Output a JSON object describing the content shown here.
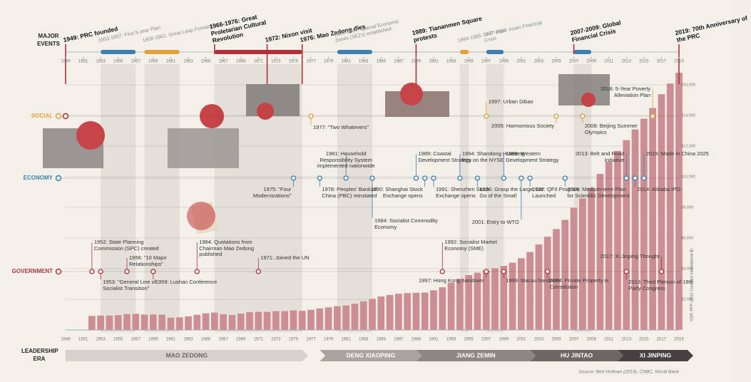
{
  "chart_data": {
    "type": "bar",
    "y_axis_label": "GDP, PPP (2011 Constant international $)",
    "x": [
      1952,
      1953,
      1954,
      1955,
      1956,
      1957,
      1958,
      1959,
      1960,
      1961,
      1962,
      1963,
      1964,
      1965,
      1966,
      1967,
      1968,
      1969,
      1970,
      1971,
      1972,
      1973,
      1974,
      1975,
      1976,
      1977,
      1978,
      1979,
      1980,
      1981,
      1982,
      1983,
      1984,
      1985,
      1986,
      1987,
      1988,
      1989,
      1990,
      1991,
      1992,
      1993,
      1994,
      1995,
      1996,
      1997,
      1998,
      1999,
      2000,
      2001,
      2002,
      2003,
      2004,
      2005,
      2006,
      2007,
      2008,
      2009,
      2010,
      2011,
      2012,
      2013,
      2014,
      2015,
      2016,
      2017,
      2018,
      2019
    ],
    "values": [
      930,
      960,
      960,
      990,
      1060,
      1070,
      1020,
      1030,
      1020,
      820,
      840,
      900,
      1000,
      1100,
      1150,
      1050,
      1000,
      1090,
      1180,
      1200,
      1200,
      1250,
      1250,
      1300,
      1260,
      1330,
      1420,
      1490,
      1570,
      1620,
      1730,
      1890,
      2050,
      2200,
      2300,
      2380,
      2420,
      2440,
      2450,
      2600,
      2800,
      3100,
      3350,
      3600,
      3750,
      3900,
      4050,
      4200,
      4400,
      4700,
      5100,
      5600,
      6100,
      6600,
      7200,
      8000,
      8600,
      9300,
      10200,
      11000,
      11700,
      12400,
      13100,
      13800,
      14500,
      15400,
      16100,
      16800
    ],
    "color": "#cc8e93",
    "xlim": [
      1949,
      2019
    ],
    "xticks": [
      1949,
      1951,
      1953,
      1955,
      1957,
      1959,
      1961,
      1963,
      1965,
      1967,
      1969,
      1971,
      1973,
      1975,
      1977,
      1979,
      1981,
      1983,
      1985,
      1987,
      1989,
      1991,
      1993,
      1995,
      1997,
      1999,
      2001,
      2003,
      2005,
      2007,
      2009,
      2011,
      2013,
      2015,
      2017,
      2019
    ],
    "ylim": [
      0,
      17000
    ],
    "yticks": [
      {
        "value": 2000,
        "label": "$2,000"
      },
      {
        "value": 4000,
        "label": "$4,000"
      },
      {
        "value": 6000,
        "label": "$6,000"
      },
      {
        "value": 8000,
        "label": "$8,000"
      },
      {
        "value": 10000,
        "label": "$10,000"
      },
      {
        "value": 12000,
        "label": "$12,000"
      },
      {
        "value": 14000,
        "label": "$14,000"
      },
      {
        "value": 16000,
        "label": "$16,000"
      }
    ],
    "grid": true
  },
  "timeline": {
    "heading": [
      "MAJOR",
      "EVENTS"
    ],
    "major_events": [
      {
        "label": "1949: PRC founded",
        "start": 1949,
        "key": true
      },
      {
        "label": "1953-1957: First 5-year Plan",
        "start": 1953,
        "end": 1957,
        "key": false,
        "color": "#3d7fae"
      },
      {
        "label": "1958-1962: Great Leap Forward",
        "start": 1958,
        "end": 1962,
        "key": false,
        "color": "#e0a03c"
      },
      {
        "label": "1966-1976: Great Proletarian Cultural Revolution",
        "start": 1966,
        "end": 1976,
        "key": true,
        "color": "#b0303a"
      },
      {
        "label": "1972: Nixon visit",
        "start": 1972,
        "key": true
      },
      {
        "label": "1976: Mao Zedong dies",
        "start": 1976,
        "key": true
      },
      {
        "label": "1980-1984: Special Economic Zones (SEZs) established",
        "start": 1980,
        "end": 1984,
        "key": false,
        "color": "#3d7fae"
      },
      {
        "label": "1989: Tiananmen Square protests",
        "start": 1989,
        "key": true
      },
      {
        "label": "1994-1995: \"8-7\" Plan",
        "start": 1994,
        "end": 1995,
        "key": false,
        "color": "#e0a03c"
      },
      {
        "label": "1997-1999: Asian Financial Crisis",
        "start": 1997,
        "end": 1999,
        "key": false,
        "color": "#3d7fae"
      },
      {
        "label": "2007-2009: Global Financial Crisis",
        "start": 2007,
        "end": 2009,
        "key": true,
        "color": "#3d7fae"
      },
      {
        "label": "2019: 70th Anniversary of the PRC",
        "start": 2019,
        "key": true
      }
    ],
    "rows": [
      {
        "name": "SOCIAL",
        "color": "#e0a03c",
        "events": [
          {
            "year": 1977,
            "label": "1977: \"Two Whatevers\""
          },
          {
            "year": 1997,
            "label": "1997: Urban Dibao"
          },
          {
            "year": 2005,
            "label": "2005: Harmonious Society"
          },
          {
            "year": 2008,
            "label": "2008: Beijing Summer Olympics"
          },
          {
            "year": 2016,
            "label": "2016: 5-Year Poverty Alleviation Plan"
          }
        ]
      },
      {
        "name": "ECONOMY",
        "color": "#3d7fae",
        "events": [
          {
            "year": 1975,
            "label": "1975: \"Four Modernizations\""
          },
          {
            "year": 1978,
            "label": "1978: Peoples' Bank of China (PBC) reinstated"
          },
          {
            "year": 1981,
            "label": "1981: Household Responsibility System implemented nationwide"
          },
          {
            "year": 1984,
            "label": "1984: Socialist Commodity Economy"
          },
          {
            "year": 1989,
            "label": "1989: Coastal Development Strategy"
          },
          {
            "year": 1990,
            "label": "1990: Shanghai Stock Exchange opens"
          },
          {
            "year": 1991,
            "label": "1991: Shenzhen Stock Exchange opens"
          },
          {
            "year": 1994,
            "label": "1994: Shandong Huaneng lists on the NYSE"
          },
          {
            "year": 1996,
            "label": "1996: Grasp the Large, Let Go of the Small"
          },
          {
            "year": 1999,
            "label": "1999: Western Development Strategy"
          },
          {
            "year": 2001,
            "label": "2001: Entry to WTO"
          },
          {
            "year": 2002,
            "label": "2002: QFII Program Launched"
          },
          {
            "year": 2006,
            "label": "2006: Medium-term Plan for Scientific Development"
          },
          {
            "year": 2013,
            "label": "2013: Belt and Road Initiative"
          },
          {
            "year": 2014,
            "label": "2014: Alibaba IPO"
          },
          {
            "year": 2015,
            "label": "2015: Made in China 2025"
          }
        ]
      },
      {
        "name": "GOVERNMENT",
        "color": "#a8383f",
        "events": [
          {
            "year": 1952,
            "label": "1952: State Planning Commission (SPC) created"
          },
          {
            "year": 1953,
            "label": "1953: \"General Line of Socialist Transition\""
          },
          {
            "year": 1956,
            "label": "1956: \"10 Major Relationships\""
          },
          {
            "year": 1959,
            "label": "1959: Lushan Conference"
          },
          {
            "year": 1964,
            "label": "1964: Quotations from Chairman Mao Zedong published"
          },
          {
            "year": 1971,
            "label": "1971: Joined the UN"
          },
          {
            "year": 1992,
            "label": "1992: Socialist Market Economy (SME)"
          },
          {
            "year": 1997,
            "label": "1997: Hong Kong handover"
          },
          {
            "year": 1999,
            "label": "1999: Macau handover"
          },
          {
            "year": 2004,
            "label": "2004: Private Property in Constitution"
          },
          {
            "year": 2013,
            "label": "2013: Third Plenum of 18th Party Congress"
          },
          {
            "year": 2017,
            "label": "2017: Xi Jinping Thought"
          }
        ]
      }
    ],
    "leadership_heading": [
      "LEADERSHIP",
      "ERA"
    ],
    "eras": [
      {
        "name": "MAO ZEDONG",
        "start": 1949,
        "end": 1976,
        "color": "#d6d1cd"
      },
      {
        "name": "DENG XIAOPING",
        "start": 1978,
        "end": 1989,
        "color": "#aaa4a1"
      },
      {
        "name": "JIANG ZEMIN",
        "start": 1989,
        "end": 2002,
        "color": "#8d8784"
      },
      {
        "name": "HU JINTAO",
        "start": 2002,
        "end": 2012,
        "color": "#6c6664"
      },
      {
        "name": "XI JINPING",
        "start": 2012,
        "end": 2019,
        "color": "#454141"
      }
    ]
  },
  "source": "Source: Bert Hofman (2019), CNBC, World Bank"
}
